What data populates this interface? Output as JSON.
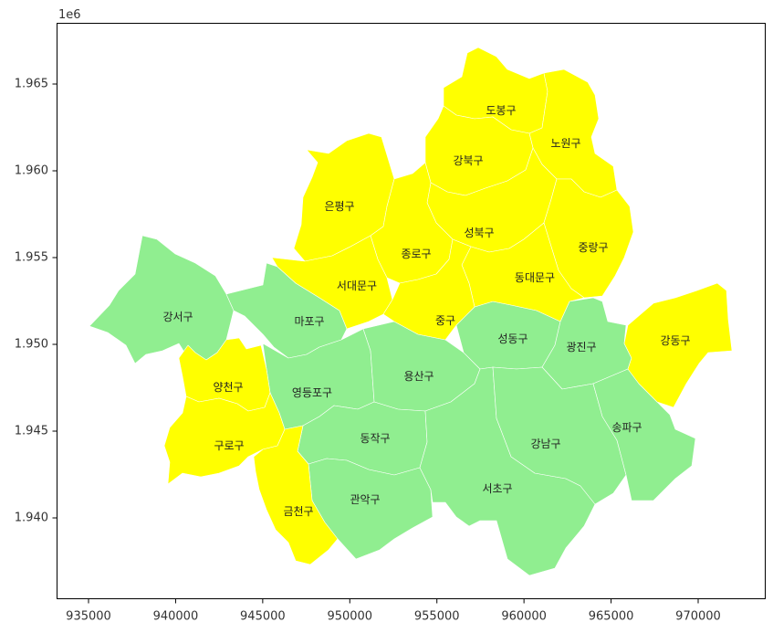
{
  "map": {
    "offset_label": "1e6",
    "colors": {
      "yellow": "#ffff00",
      "green": "#90ee90"
    },
    "x_ticks": [
      {
        "value": 935000,
        "label": "935000"
      },
      {
        "value": 940000,
        "label": "940000"
      },
      {
        "value": 945000,
        "label": "945000"
      },
      {
        "value": 950000,
        "label": "950000"
      },
      {
        "value": 955000,
        "label": "955000"
      },
      {
        "value": 960000,
        "label": "960000"
      },
      {
        "value": 965000,
        "label": "965000"
      },
      {
        "value": 970000,
        "label": "970000"
      }
    ],
    "y_ticks": [
      {
        "value": 1940000,
        "label": "1.940"
      },
      {
        "value": 1945000,
        "label": "1.945"
      },
      {
        "value": 1950000,
        "label": "1.950"
      },
      {
        "value": 1955000,
        "label": "1.955"
      },
      {
        "value": 1960000,
        "label": "1.960"
      },
      {
        "value": 1965000,
        "label": "1.965"
      }
    ],
    "districts": [
      {
        "name": "도봉구",
        "color": "yellow"
      },
      {
        "name": "노원구",
        "color": "yellow"
      },
      {
        "name": "강북구",
        "color": "yellow"
      },
      {
        "name": "은평구",
        "color": "yellow"
      },
      {
        "name": "성북구",
        "color": "yellow"
      },
      {
        "name": "종로구",
        "color": "yellow"
      },
      {
        "name": "중랑구",
        "color": "yellow"
      },
      {
        "name": "서대문구",
        "color": "yellow"
      },
      {
        "name": "동대문구",
        "color": "yellow"
      },
      {
        "name": "중구",
        "color": "yellow"
      },
      {
        "name": "강동구",
        "color": "yellow"
      },
      {
        "name": "양천구",
        "color": "yellow"
      },
      {
        "name": "구로구",
        "color": "yellow"
      },
      {
        "name": "금천구",
        "color": "yellow"
      },
      {
        "name": "강서구",
        "color": "green"
      },
      {
        "name": "마포구",
        "color": "green"
      },
      {
        "name": "성동구",
        "color": "green"
      },
      {
        "name": "광진구",
        "color": "green"
      },
      {
        "name": "용산구",
        "color": "green"
      },
      {
        "name": "영등포구",
        "color": "green"
      },
      {
        "name": "동작구",
        "color": "green"
      },
      {
        "name": "강남구",
        "color": "green"
      },
      {
        "name": "송파구",
        "color": "green"
      },
      {
        "name": "서초구",
        "color": "green"
      },
      {
        "name": "관악구",
        "color": "green"
      }
    ]
  }
}
